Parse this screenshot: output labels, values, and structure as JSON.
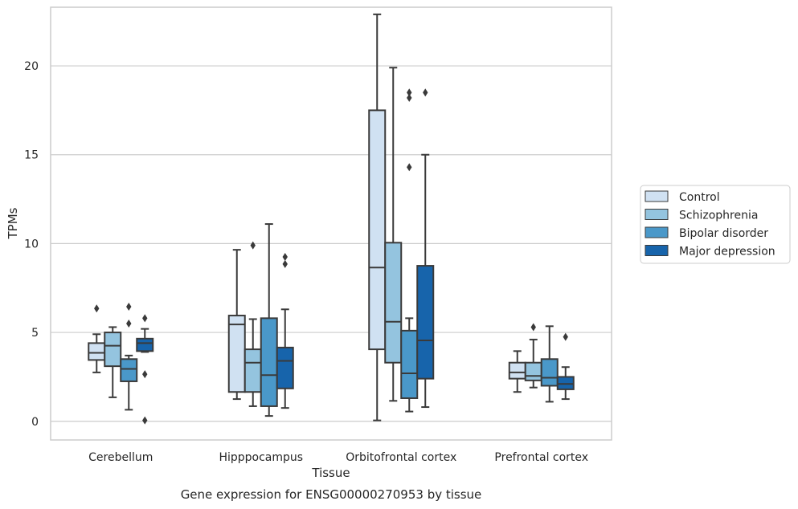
{
  "chart_data": {
    "type": "box",
    "xlabel": "Tissue",
    "ylabel": "TPMs",
    "caption": "Gene expression for ENSG00000270953 by tissue",
    "ylim": [
      -1.05,
      23.3
    ],
    "yticks": [
      0,
      5,
      10,
      15,
      20
    ],
    "grid": "horizontal",
    "legend_position": "right",
    "categories": [
      "Cerebellum",
      "Hipppocampus",
      "Orbitofrontal cortex",
      "Prefrontal cortex"
    ],
    "series": [
      {
        "name": "Control",
        "color": "#d0e1f2",
        "boxes": [
          {
            "whislo": 2.75,
            "q1": 3.45,
            "med": 3.85,
            "q3": 4.4,
            "whishi": 4.9,
            "fliers": [
              6.35
            ]
          },
          {
            "whislo": 1.25,
            "q1": 1.65,
            "med": 5.45,
            "q3": 5.95,
            "whishi": 9.65,
            "fliers": []
          },
          {
            "whislo": 0.05,
            "q1": 4.05,
            "med": 8.65,
            "q3": 17.5,
            "whishi": 22.9,
            "fliers": []
          },
          {
            "whislo": 1.65,
            "q1": 2.4,
            "med": 2.75,
            "q3": 3.3,
            "whishi": 3.95,
            "fliers": []
          }
        ]
      },
      {
        "name": "Schizophrenia",
        "color": "#94c4df",
        "boxes": [
          {
            "whislo": 1.35,
            "q1": 3.1,
            "med": 4.25,
            "q3": 5.0,
            "whishi": 5.3,
            "fliers": []
          },
          {
            "whislo": 0.85,
            "q1": 1.65,
            "med": 3.3,
            "q3": 4.05,
            "whishi": 5.75,
            "fliers": [
              9.9
            ]
          },
          {
            "whislo": 1.15,
            "q1": 3.3,
            "med": 5.6,
            "q3": 10.05,
            "whishi": 19.9,
            "fliers": []
          },
          {
            "whislo": 1.9,
            "q1": 2.3,
            "med": 2.55,
            "q3": 3.3,
            "whishi": 4.6,
            "fliers": [
              5.3
            ]
          }
        ]
      },
      {
        "name": "Bipolar disorder",
        "color": "#4a98c9",
        "boxes": [
          {
            "whislo": 0.65,
            "q1": 2.25,
            "med": 2.95,
            "q3": 3.5,
            "whishi": 3.7,
            "fliers": [
              5.5,
              6.45
            ]
          },
          {
            "whislo": 0.3,
            "q1": 0.85,
            "med": 2.6,
            "q3": 5.8,
            "whishi": 11.1,
            "fliers": []
          },
          {
            "whislo": 0.55,
            "q1": 1.3,
            "med": 2.7,
            "q3": 5.1,
            "whishi": 5.8,
            "fliers": [
              14.3,
              18.2,
              18.5
            ]
          },
          {
            "whislo": 1.1,
            "q1": 2.0,
            "med": 2.45,
            "q3": 3.5,
            "whishi": 5.35,
            "fliers": []
          }
        ]
      },
      {
        "name": "Major depression",
        "color": "#1764ab",
        "boxes": [
          {
            "whislo": 3.9,
            "q1": 3.95,
            "med": 4.4,
            "q3": 4.65,
            "whishi": 5.2,
            "fliers": [
              0.05,
              2.65,
              5.8
            ]
          },
          {
            "whislo": 0.75,
            "q1": 1.85,
            "med": 3.4,
            "q3": 4.15,
            "whishi": 6.3,
            "fliers": [
              8.85,
              9.25
            ]
          },
          {
            "whislo": 0.8,
            "q1": 2.4,
            "med": 4.55,
            "q3": 8.75,
            "whishi": 15.0,
            "fliers": [
              18.5
            ]
          },
          {
            "whislo": 1.25,
            "q1": 1.8,
            "med": 2.1,
            "q3": 2.5,
            "whishi": 3.05,
            "fliers": [
              4.75
            ]
          }
        ]
      }
    ]
  }
}
